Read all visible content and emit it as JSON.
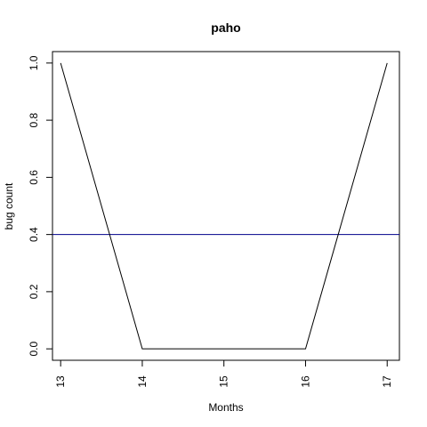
{
  "chart_data": {
    "type": "line",
    "title": "paho",
    "xlabel": "Months",
    "ylabel": "bug count",
    "x": [
      13,
      14,
      15,
      16,
      17
    ],
    "series": [
      {
        "name": "bug count",
        "values": [
          1.0,
          0.0,
          0.0,
          0.0,
          1.0
        ],
        "color": "#000000"
      }
    ],
    "reference_line": {
      "y": 0.4,
      "color": "#00008b"
    },
    "xlim": [
      12.9,
      17.15
    ],
    "ylim": [
      -0.04,
      1.04
    ],
    "x_ticks": [
      13,
      14,
      15,
      16,
      17
    ],
    "x_tick_labels": [
      "13",
      "14",
      "15",
      "16",
      "17"
    ],
    "y_ticks": [
      0.0,
      0.2,
      0.4,
      0.6,
      0.8,
      1.0
    ],
    "y_tick_labels": [
      "0.0",
      "0.2",
      "0.4",
      "0.6",
      "0.8",
      "1.0"
    ],
    "grid": false,
    "legend": "none"
  }
}
